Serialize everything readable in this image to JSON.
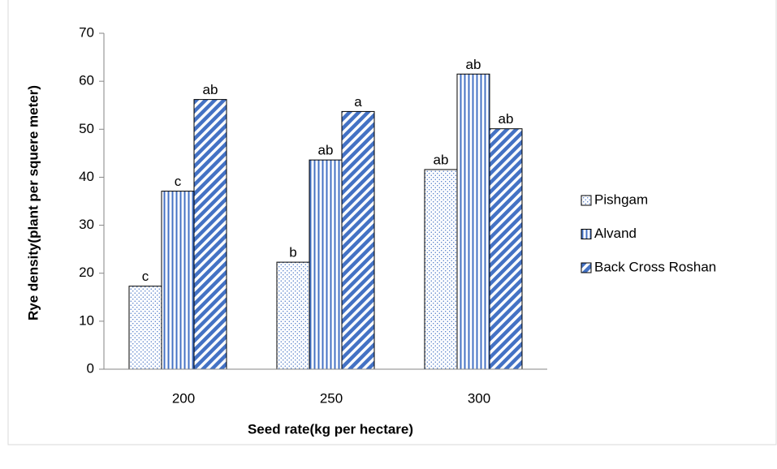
{
  "chart_data": {
    "type": "bar",
    "categories": [
      "200",
      "250",
      "300"
    ],
    "x_label": "Seed rate(kg per hectare)",
    "y_label": "Rye density(plant per squere meter)",
    "series": [
      {
        "name": "Pishgam",
        "color": "#4472c4",
        "pattern": "dots",
        "values": [
          17.3,
          22.3,
          41.6
        ],
        "annotations": [
          "c",
          "b",
          "ab"
        ]
      },
      {
        "name": "Alvand",
        "color": "#4472c4",
        "pattern": "vertical",
        "values": [
          37.1,
          43.6,
          61.5
        ],
        "annotations": [
          "c",
          "ab",
          "ab"
        ]
      },
      {
        "name": "Back Cross Roshan",
        "color": "#4472c4",
        "pattern": "diagonal",
        "values": [
          56.2,
          53.7,
          50.1
        ],
        "annotations": [
          "ab",
          "a",
          "ab"
        ]
      }
    ],
    "ylim": [
      0,
      70
    ],
    "yticks": [
      0,
      10,
      20,
      30,
      40,
      50,
      60,
      70
    ],
    "grid": false,
    "legend": "right"
  }
}
